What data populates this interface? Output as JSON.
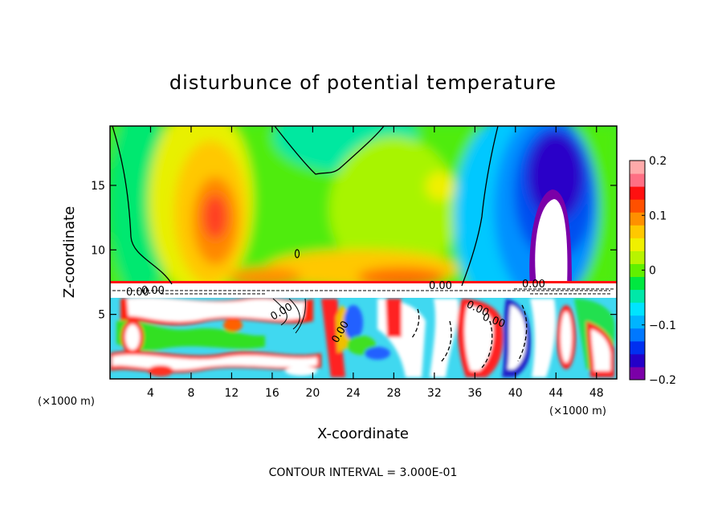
{
  "chart_data": {
    "type": "heatmap",
    "title": "disturbunce of potential temperature",
    "xlabel": "X-coordinate",
    "ylabel": "Z-coordinate",
    "x_unit_left": "(×1000 m)",
    "x_unit_right": "(×1000 m)",
    "xlim": [
      0,
      50
    ],
    "ylim": [
      0,
      19.6
    ],
    "x_ticks": [
      "4",
      "8",
      "12",
      "16",
      "20",
      "24",
      "28",
      "32",
      "36",
      "40",
      "44",
      "48"
    ],
    "y_ticks": [
      "5",
      "10",
      "15"
    ],
    "colorbar": {
      "range": [
        -0.2,
        0.2
      ],
      "tick_labels": [
        "0.2",
        "0.1",
        "0",
        "−0.1",
        "−0.2"
      ],
      "tick_values": [
        0.2,
        0.1,
        0,
        -0.1,
        -0.2
      ],
      "colors": [
        "#7b00a8",
        "#2400c8",
        "#0030f0",
        "#0078ff",
        "#00b4ff",
        "#00e4ff",
        "#00e8a8",
        "#00e840",
        "#60f000",
        "#b8f400",
        "#f0f000",
        "#ffc800",
        "#ff9000",
        "#ff5000",
        "#ff1010",
        "#ff6f84",
        "#ffaaaa"
      ]
    },
    "contour_labels": [
      "0.00",
      "0.00",
      "0.00",
      "0.00",
      "0.00",
      "0.00",
      "0.00",
      "0.00"
    ],
    "contour_interval_text": "CONTOUR INTERVAL = 3.000E-01"
  }
}
